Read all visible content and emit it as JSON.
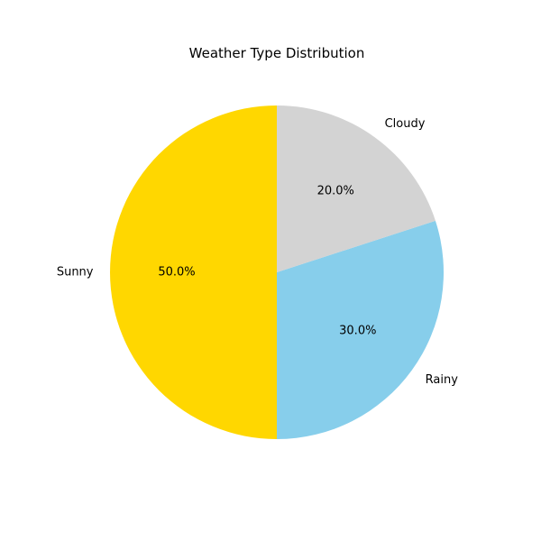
{
  "chart_data": {
    "type": "pie",
    "title": "Weather Type Distribution",
    "slices": [
      {
        "label": "Sunny",
        "value": 50.0,
        "percent_label": "50.0%",
        "color": "#ffd700"
      },
      {
        "label": "Rainy",
        "value": 30.0,
        "percent_label": "30.0%",
        "color": "#87ceeb"
      },
      {
        "label": "Cloudy",
        "value": 20.0,
        "percent_label": "20.0%",
        "color": "#d3d3d3"
      }
    ],
    "start_angle_deg": 90,
    "direction": "counterclockwise"
  }
}
